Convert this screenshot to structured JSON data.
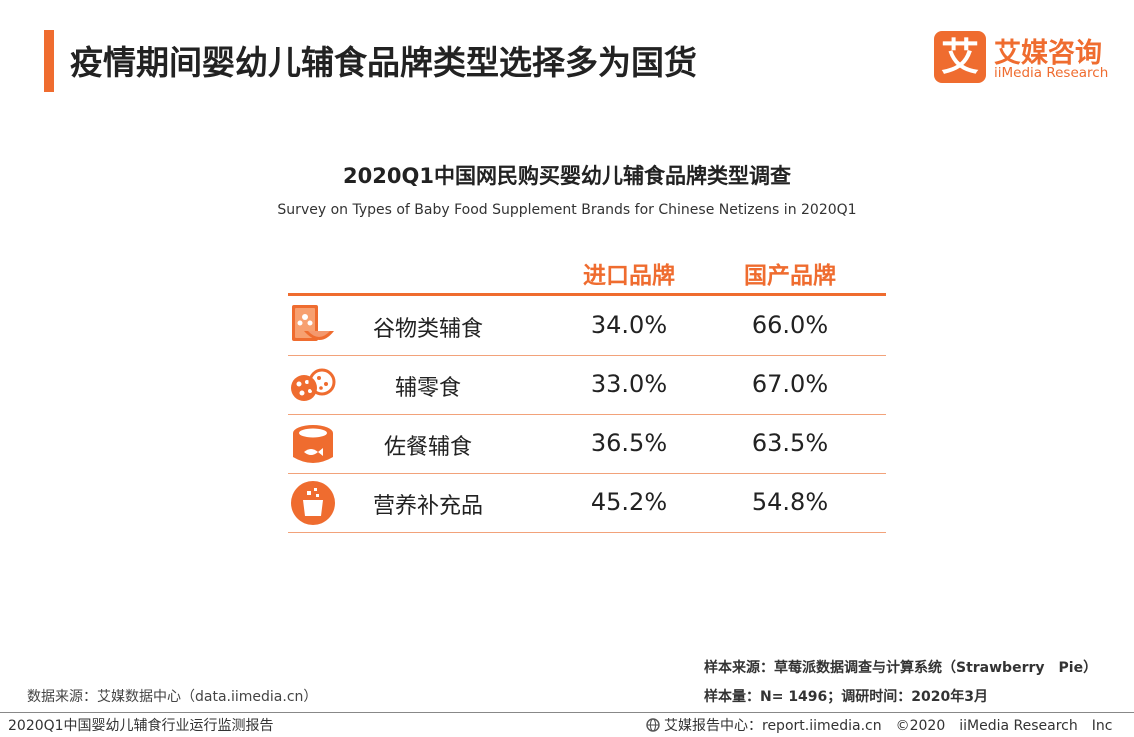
{
  "header": {
    "title": "疫情期间婴幼儿辅食品牌类型选择多为国货",
    "accent_color": "#ef6c2f"
  },
  "logo": {
    "mark": "艾",
    "cn": "艾媒咨询",
    "en": "iiMedia Research"
  },
  "chart_data": {
    "type": "table",
    "title": "2020Q1中国网民购买婴幼儿辅食品牌类型调查",
    "subtitle": "Survey on Types of Baby Food Supplement Brands for Chinese Netizens in 2020Q1",
    "columns": [
      "进口品牌",
      "国产品牌"
    ],
    "rows": [
      {
        "label": "谷物类辅食",
        "icon": "cereal-bowl-icon",
        "import": "34.0%",
        "domestic": "66.0%"
      },
      {
        "label": "辅零食",
        "icon": "cookie-icon",
        "import": "33.0%",
        "domestic": "67.0%"
      },
      {
        "label": "佐餐辅食",
        "icon": "canned-fish-icon",
        "import": "36.5%",
        "domestic": "63.5%"
      },
      {
        "label": "营养补充品",
        "icon": "supplement-cup-icon",
        "import": "45.2%",
        "domestic": "54.8%"
      }
    ],
    "values_import": [
      34.0,
      33.0,
      36.5,
      45.2
    ],
    "values_domestic": [
      66.0,
      67.0,
      63.5,
      54.8
    ]
  },
  "sources": {
    "data_source": "数据来源：艾媒数据中心（data.iimedia.cn）",
    "sample_source": "样本来源：草莓派数据调查与计算系统（Strawberry　Pie）",
    "sample_size": "样本量：N= 1496；调研时间：2020年3月"
  },
  "footer": {
    "report_name": "2020Q1中国婴幼儿辅食行业运行监测报告",
    "copyright": "艾媒报告中心：report.iimedia.cn　©2020　iiMedia Research　Inc"
  }
}
